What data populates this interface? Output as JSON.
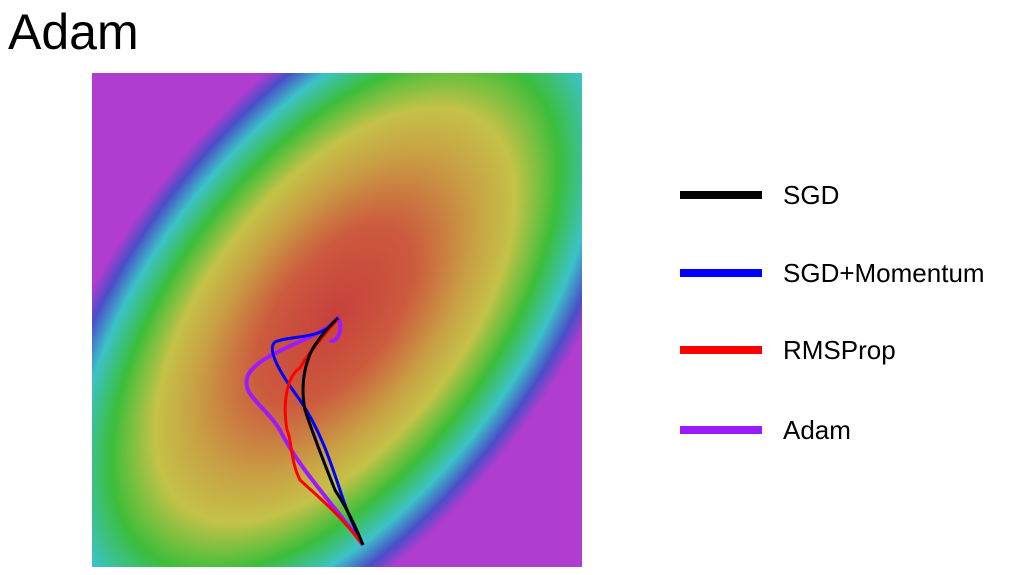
{
  "title": "Adam",
  "legend": [
    {
      "label": "SGD",
      "color": "#000000"
    },
    {
      "label": "SGD+Momentum",
      "color": "#0000ff"
    },
    {
      "label": "RMSProp",
      "color": "#ff0000"
    },
    {
      "label": "Adam",
      "color": "#9b1bff"
    }
  ]
}
